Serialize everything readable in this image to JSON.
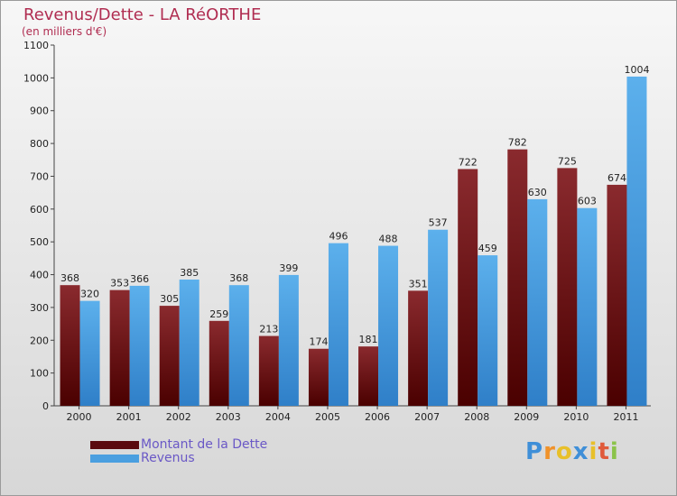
{
  "chart_data": {
    "type": "bar",
    "title": "Revenus/Dette - LA RéORTHE",
    "subtitle": "(en milliers d'€)",
    "categories": [
      "2000",
      "2001",
      "2002",
      "2003",
      "2004",
      "2005",
      "2006",
      "2007",
      "2008",
      "2009",
      "2010",
      "2011"
    ],
    "series": [
      {
        "name": "Montant de la Dette",
        "color": "#6b0a10",
        "values": [
          368,
          353,
          305,
          259,
          213,
          174,
          181,
          351,
          722,
          782,
          725,
          674
        ]
      },
      {
        "name": "Revenus",
        "color": "#4a9fe0",
        "values": [
          320,
          366,
          385,
          368,
          399,
          496,
          488,
          537,
          459,
          630,
          603,
          1004
        ]
      }
    ],
    "ylim": [
      0,
      1100
    ],
    "yticks": [
      0,
      100,
      200,
      300,
      400,
      500,
      600,
      700,
      800,
      900,
      1000,
      1100
    ],
    "grid": false,
    "legend": "bottom-left"
  },
  "logo": {
    "letters": [
      {
        "char": "P",
        "color": "#3f8fd8"
      },
      {
        "char": "r",
        "color": "#f0922a"
      },
      {
        "char": "o",
        "color": "#e8c02a"
      },
      {
        "char": "x",
        "color": "#3f8fd8"
      },
      {
        "char": "i",
        "color": "#e8c02a"
      },
      {
        "char": "t",
        "color": "#e05a3a"
      },
      {
        "char": "i",
        "color": "#8bc34a"
      }
    ]
  }
}
